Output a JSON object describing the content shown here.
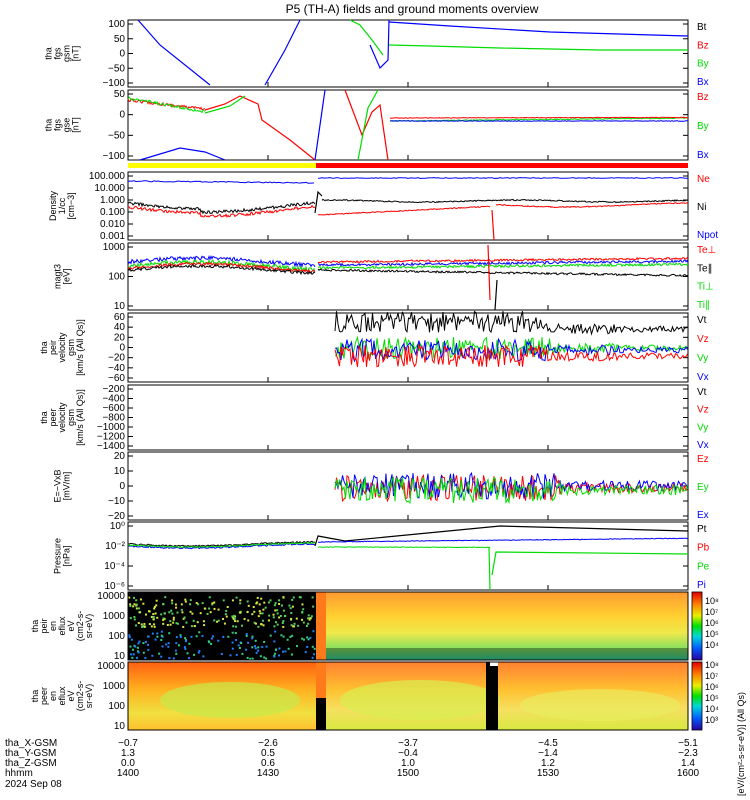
{
  "title": "P5 (TH-A) fields and ground moments overview",
  "colors": {
    "black": "#000000",
    "red": "#ff0000",
    "green": "#00dd00",
    "blue": "#0000ff",
    "yellow": "#ffff00",
    "orange": "#ff7a1a"
  },
  "panels": [
    {
      "id": "fgs_full",
      "ylabel": [
        "tha",
        "fgs",
        "gsm",
        "[nT]"
      ],
      "yticks": [
        "100",
        "50",
        "0",
        "−50",
        "−100"
      ],
      "legend": [
        {
          "label": "Bt",
          "color": "#000000"
        },
        {
          "label": "Bz",
          "color": "#ff0000"
        },
        {
          "label": "By",
          "color": "#00dd00"
        },
        {
          "label": "Bx",
          "color": "#0000ff"
        }
      ]
    },
    {
      "id": "fgs_zoom",
      "ylabel": [
        "tha",
        "fgs",
        "gse",
        "[nT]"
      ],
      "yticks": [
        "50",
        "0",
        "−50",
        "−100"
      ],
      "legend": [
        {
          "label": "Bz",
          "color": "#ff0000"
        },
        {
          "label": "By",
          "color": "#00dd00"
        },
        {
          "label": "Bx",
          "color": "#0000ff"
        }
      ]
    },
    {
      "id": "density",
      "ylabel": [
        "Density",
        "1/cc",
        "[cm−3]"
      ],
      "yticks": [
        "100.000",
        "10.000",
        "1.000",
        "0.100",
        "0.010",
        "0.001"
      ],
      "legend": [
        {
          "label": "Ne",
          "color": "#ff0000"
        },
        {
          "label": "Ni",
          "color": "#000000"
        },
        {
          "label": "Npot",
          "color": "#0000ff"
        }
      ]
    },
    {
      "id": "temperature",
      "ylabel": [
        "magt3",
        "[eV]"
      ],
      "yticks": [
        "1000",
        "100",
        "10"
      ],
      "legend": [
        {
          "label": "Te⊥",
          "color": "#ff0000"
        },
        {
          "label": "Te∥",
          "color": "#000000"
        },
        {
          "label": "Ti⊥",
          "color": "#00dd00"
        },
        {
          "label": "Ti∥",
          "color": "#00dd00"
        }
      ]
    },
    {
      "id": "peir_velocity",
      "ylabel": [
        "tha",
        "peir",
        "velocity",
        "gsm",
        "[km/s (All Qs)]"
      ],
      "yticks": [
        "60",
        "40",
        "20",
        "0",
        "−20",
        "−40",
        "−60"
      ],
      "legend": [
        {
          "label": "Vt",
          "color": "#000000"
        },
        {
          "label": "Vz",
          "color": "#ff0000"
        },
        {
          "label": "Vy",
          "color": "#00dd00"
        },
        {
          "label": "Vx",
          "color": "#0000ff"
        }
      ]
    },
    {
      "id": "peer_velocity",
      "ylabel": [
        "tha",
        "peer",
        "velocity",
        "gsm",
        "[km/s (All Qs)]"
      ],
      "yticks": [
        "−200",
        "−400",
        "−600",
        "−800",
        "−1000",
        "−1200",
        "−1400"
      ],
      "legend": [
        {
          "label": "Vt",
          "color": "#000000"
        },
        {
          "label": "Vz",
          "color": "#ff0000"
        },
        {
          "label": "Vy",
          "color": "#00dd00"
        },
        {
          "label": "Vx",
          "color": "#0000ff"
        }
      ]
    },
    {
      "id": "efield",
      "ylabel": [
        "E=−VxB",
        "[mV/m]"
      ],
      "yticks": [
        "20",
        "10",
        "0",
        "−10",
        "−20"
      ],
      "legend": [
        {
          "label": "Ez",
          "color": "#ff0000"
        },
        {
          "label": "Ey",
          "color": "#00dd00"
        },
        {
          "label": "Ex",
          "color": "#0000ff"
        }
      ]
    },
    {
      "id": "pressure",
      "ylabel": [
        "Pressure",
        "[nPa]"
      ],
      "yticks": [
        "10⁰",
        "10⁻²",
        "10⁻⁴",
        "10⁻⁶"
      ],
      "legend": [
        {
          "label": "Pt",
          "color": "#000000"
        },
        {
          "label": "Pb",
          "color": "#ff0000"
        },
        {
          "label": "Pe",
          "color": "#00dd00"
        },
        {
          "label": "Pi",
          "color": "#0000ff"
        }
      ]
    },
    {
      "id": "peir_spec",
      "ylabel": [
        "tha",
        "peir",
        "en",
        "eflux",
        "eV",
        "(cm2-s-",
        "sr-eV)"
      ],
      "yticks": [
        "10000",
        "1000",
        "100",
        "10"
      ],
      "legend": []
    },
    {
      "id": "peer_spec",
      "ylabel": [
        "tha",
        "peer",
        "en",
        "eflux",
        "eV",
        "(cm2-s-",
        "sr-eV)"
      ],
      "yticks": [
        "10000",
        "1000",
        "100",
        "10"
      ],
      "legend": []
    }
  ],
  "colorbar": {
    "label": "[eV/(cm²-s-sr-eV)] (All Qs)",
    "ticks_top": [
      "10⁸",
      "10⁷",
      "10⁶",
      "10⁵",
      "10⁴"
    ],
    "ticks_bottom": [
      "10⁸",
      "10⁷",
      "10⁶",
      "10⁵",
      "10⁴",
      "10³"
    ]
  },
  "xaxis": {
    "rows": [
      {
        "label": "tha_X-GSM",
        "values": [
          "−0.7",
          "−2.6",
          "−3.7",
          "−4.5",
          "−5.1"
        ]
      },
      {
        "label": "tha_Y-GSM",
        "values": [
          "1.3",
          "0.5",
          "−0.4",
          "−1.4",
          "−2.3"
        ]
      },
      {
        "label": "tha_Z-GSM",
        "values": [
          "0.0",
          "0.6",
          "1.0",
          "1.2",
          "1.4"
        ]
      },
      {
        "label": "hhmm",
        "values": [
          "1400",
          "1430",
          "1500",
          "1530",
          "1600"
        ]
      }
    ],
    "date": "2024 Sep 08"
  },
  "chart_data": [
    {
      "type": "line",
      "title": "P5 (TH-A) fields and ground moments overview",
      "ylabel": "tha fgs gsm [nT]",
      "ylim": [
        -100,
        100
      ],
      "x": [
        "1400",
        "1430",
        "1500",
        "1530",
        "1600"
      ],
      "series": [
        {
          "name": "Bt",
          "values": [
            null,
            null,
            30,
            20,
            15
          ]
        },
        {
          "name": "By",
          "values": [
            null,
            null,
            25,
            10,
            8
          ]
        },
        {
          "name": "Bx",
          "values": [
            null,
            null,
            -50,
            80,
            50
          ]
        }
      ]
    },
    {
      "type": "line",
      "ylabel": "Density [cm-3]",
      "ylim": [
        0.001,
        100
      ],
      "x": [
        "1400",
        "1430",
        "1500",
        "1530",
        "1600"
      ],
      "series": [
        {
          "name": "Ne",
          "values": [
            0.35,
            0.15,
            0.3,
            0.4,
            0.35
          ]
        },
        {
          "name": "Ni",
          "values": [
            0.6,
            0.3,
            1.0,
            0.9,
            0.9
          ]
        },
        {
          "name": "Npot",
          "values": [
            30,
            25,
            30,
            30,
            30
          ]
        }
      ]
    },
    {
      "type": "line",
      "ylabel": "Pressure [nPa]",
      "x": [
        "1400",
        "1430",
        "1500",
        "1530",
        "1600"
      ],
      "series": [
        {
          "name": "Pt",
          "values": [
            0.05,
            0.05,
            0.5,
            0.3,
            0.2
          ]
        },
        {
          "name": "Pi",
          "values": [
            0.05,
            0.02,
            0.08,
            0.08,
            0.08
          ]
        },
        {
          "name": "Pe",
          "values": [
            0.05,
            0.02,
            0.005,
            0.003,
            0.003
          ]
        }
      ]
    }
  ]
}
